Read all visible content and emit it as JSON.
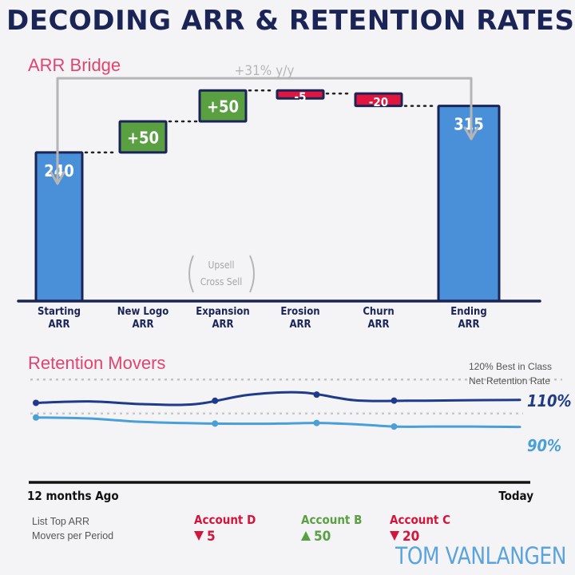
{
  "title": "DECODING ARR & RETENTION RATES",
  "colors": {
    "navy": "#1b2456",
    "pink": "#e0446f",
    "blue_bar": "#4a90d9",
    "green_bar": "#5aa043",
    "red_bar": "#e0163e",
    "gray": "#b5b5b5",
    "dark_line": "#1e3a8a",
    "light_line": "#4a9fd8",
    "signature": "#5ba3dc"
  },
  "chart_data": [
    {
      "type": "bar",
      "subtype": "waterfall",
      "title": "ARR Bridge",
      "categories": [
        "Starting ARR",
        "New Logo ARR",
        "Expansion ARR",
        "Erosion ARR",
        "Churn ARR",
        "Ending ARR"
      ],
      "values": [
        240,
        50,
        50,
        -5,
        -20,
        315
      ],
      "value_labels": [
        "240",
        "+50",
        "+50",
        "-5",
        "-20",
        "315"
      ],
      "kinds": [
        "total",
        "increase",
        "increase",
        "decrease",
        "decrease",
        "total"
      ],
      "ylim": [
        0,
        370
      ],
      "annotation": "+31% y/y",
      "note_lines": [
        "Upsell",
        "Cross Sell"
      ]
    },
    {
      "type": "line",
      "title": "Retention Movers",
      "x_start_label": "12 months Ago",
      "x_end_label": "Today",
      "ylim": [
        82,
        122
      ],
      "reference_value": 120,
      "reference_label_lines": [
        "120% Best in Class",
        "Net Retention Rate"
      ],
      "dotted_level": 110,
      "series": [
        {
          "name": "110%",
          "x": [
            0,
            0.11,
            0.22,
            0.33,
            0.44,
            0.55,
            0.66,
            0.77,
            0.88,
            1.0
          ],
          "values": [
            109.0,
            109.7,
            108.4,
            108.4,
            112.8,
            113.9,
            110.2,
            110.0,
            110.2,
            110.4
          ],
          "markers": [
            0,
            0.37,
            0.58,
            0.74
          ]
        },
        {
          "name": "90%",
          "x": [
            0,
            0.11,
            0.22,
            0.37,
            0.5,
            0.58,
            0.66,
            0.74,
            0.82,
            0.9,
            1.0
          ],
          "values": [
            102.1,
            101.6,
            100.0,
            99.2,
            99.2,
            99.5,
            98.9,
            97.8,
            97.8,
            97.8,
            97.6
          ],
          "markers": [
            0,
            0.37,
            0.58,
            0.74
          ]
        }
      ]
    }
  ],
  "movers": {
    "caption_lines": [
      "List Top ARR",
      "Movers per Period"
    ],
    "items": [
      {
        "name": "Account D",
        "direction": "down",
        "value": "5"
      },
      {
        "name": "Account B",
        "direction": "up",
        "value": "50"
      },
      {
        "name": "Account C",
        "direction": "down",
        "value": "20"
      }
    ]
  },
  "signature": "TOM VANLANGEN"
}
